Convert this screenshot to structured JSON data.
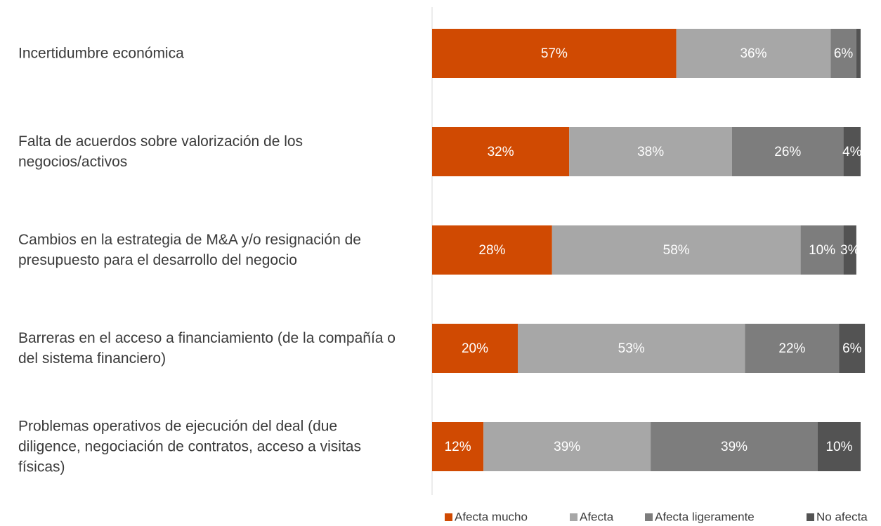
{
  "chart_data": {
    "type": "stacked-bar-horizontal",
    "categories": [
      "Incertidumbre económica",
      "Falta de acuerdos sobre valorización de los negocios/activos",
      "Cambios en la estrategia de M&A y/o resignación de presupuesto para el desarrollo del negocio",
      "Barreras en el acceso a financiamiento (de la compañía o del sistema financiero)",
      "Problemas operativos de ejecución del deal (due diligence, negociación de contratos, acceso a visitas físicas)"
    ],
    "xlim": [
      0,
      100
    ],
    "legend": "bottom-right",
    "series": [
      {
        "name": "Afecta mucho",
        "color": "#d04a02",
        "values": [
          57,
          32,
          28,
          20,
          12
        ],
        "value_labels": [
          "57%",
          "32%",
          "28%",
          "20%",
          "12%"
        ]
      },
      {
        "name": "Afecta",
        "color": "#a7a7a7",
        "values": [
          36,
          38,
          58,
          53,
          39
        ],
        "value_labels": [
          "36%",
          "38%",
          "58%",
          "53%",
          "39%"
        ]
      },
      {
        "name": "Afecta ligeramente",
        "color": "#7d7d7d",
        "values": [
          6,
          26,
          10,
          22,
          39
        ],
        "value_labels": [
          "6%",
          "26%",
          "10%",
          "22%",
          "39%"
        ]
      },
      {
        "name": "No afecta",
        "color": "#535353",
        "values": [
          1,
          4,
          3,
          6,
          10
        ],
        "value_labels": [
          null,
          "4%",
          "3%",
          "6%",
          "10%"
        ]
      }
    ]
  }
}
